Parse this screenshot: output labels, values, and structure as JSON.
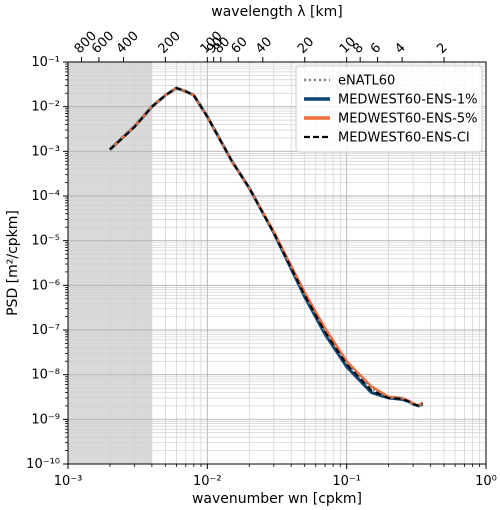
{
  "chart_data": {
    "type": "line",
    "xscale": "log",
    "yscale": "log",
    "xlabel": "wavenumber wn [cpkm]",
    "ylabel": "PSD [m²/cpkm]",
    "top_xlabel": "wavelength λ [km]",
    "xlim": [
      0.001,
      1
    ],
    "ylim": [
      1e-10,
      0.1
    ],
    "grid": true,
    "legend_position": "top-right",
    "x_tick_labels": [
      "10⁻³",
      "10⁻²",
      "10⁻¹",
      "10⁰"
    ],
    "y_tick_labels": [
      "10⁻¹⁰",
      "10⁻⁹",
      "10⁻⁸",
      "10⁻⁷",
      "10⁻⁶",
      "10⁻⁵",
      "10⁻⁴",
      "10⁻³",
      "10⁻²",
      "10⁻¹"
    ],
    "top_ticks": [
      800,
      600,
      400,
      200,
      100,
      90,
      80,
      60,
      40,
      20,
      10,
      8,
      6,
      4,
      2
    ],
    "top_tick_labels": [
      "800",
      "600",
      "400",
      "200",
      "100",
      "90",
      "80",
      "60",
      "40",
      "20",
      "10",
      "8",
      "6",
      "4",
      "2"
    ],
    "shaded_region": {
      "x": [
        0.001,
        0.004
      ],
      "color": "#d9d9d9"
    },
    "series": [
      {
        "name": "eNATL60",
        "style": "dotted",
        "color": "#808080",
        "x": [
          0.002,
          0.003,
          0.004,
          0.005,
          0.006,
          0.007,
          0.008,
          0.01,
          0.015,
          0.02,
          0.03,
          0.05,
          0.07,
          0.1,
          0.15,
          0.2,
          0.25,
          0.28,
          0.3,
          0.33,
          0.35
        ],
        "y": [
          0.0011,
          0.0035,
          0.01,
          0.018,
          0.025,
          0.022,
          0.018,
          0.006,
          0.0006,
          0.00015,
          1.5e-05,
          6e-07,
          9e-08,
          1.8e-08,
          5e-09,
          3e-09,
          3e-09,
          2.5e-09,
          2.2e-09,
          2e-09,
          2.3e-09
        ]
      },
      {
        "name": "MEDWEST60-ENS-1%",
        "style": "solid",
        "color": "#0b4470",
        "x": [
          0.002,
          0.003,
          0.004,
          0.005,
          0.006,
          0.007,
          0.008,
          0.01,
          0.015,
          0.02,
          0.03,
          0.05,
          0.07,
          0.1,
          0.15,
          0.2,
          0.25,
          0.28,
          0.3,
          0.33,
          0.35
        ],
        "y": [
          0.0011,
          0.0036,
          0.01,
          0.018,
          0.026,
          0.022,
          0.018,
          0.006,
          0.0006,
          0.00015,
          1.5e-05,
          5.5e-07,
          8e-08,
          1.5e-08,
          4e-09,
          3e-09,
          2.8e-09,
          2.5e-09,
          2.2e-09,
          2e-09,
          2.2e-09
        ]
      },
      {
        "name": "MEDWEST60-ENS-5%",
        "style": "solid",
        "color": "#f26c3c",
        "x": [
          0.002,
          0.003,
          0.004,
          0.005,
          0.006,
          0.007,
          0.008,
          0.01,
          0.015,
          0.02,
          0.03,
          0.05,
          0.07,
          0.1,
          0.15,
          0.2,
          0.25,
          0.28,
          0.3,
          0.33,
          0.35
        ],
        "y": [
          0.0011,
          0.0036,
          0.01,
          0.018,
          0.026,
          0.022,
          0.018,
          0.006,
          0.0006,
          0.00015,
          1.6e-05,
          7e-07,
          1.1e-07,
          2e-08,
          5.5e-09,
          3.2e-09,
          3e-09,
          2.6e-09,
          2.3e-09,
          2e-09,
          2.4e-09
        ]
      },
      {
        "name": "MEDWEST60-ENS-CI",
        "style": "dashed",
        "color": "#000000",
        "x": [
          0.002,
          0.003,
          0.004,
          0.005,
          0.006,
          0.007,
          0.008,
          0.01,
          0.015,
          0.02,
          0.03,
          0.05,
          0.07,
          0.1,
          0.15,
          0.2,
          0.25,
          0.28,
          0.3,
          0.33,
          0.35
        ],
        "y": [
          0.0011,
          0.0035,
          0.01,
          0.018,
          0.026,
          0.022,
          0.018,
          0.006,
          0.0006,
          0.00015,
          1.5e-05,
          6e-07,
          9e-08,
          1.7e-08,
          4.5e-09,
          3e-09,
          2.9e-09,
          2.5e-09,
          2.2e-09,
          2e-09,
          2.3e-09
        ]
      }
    ]
  }
}
